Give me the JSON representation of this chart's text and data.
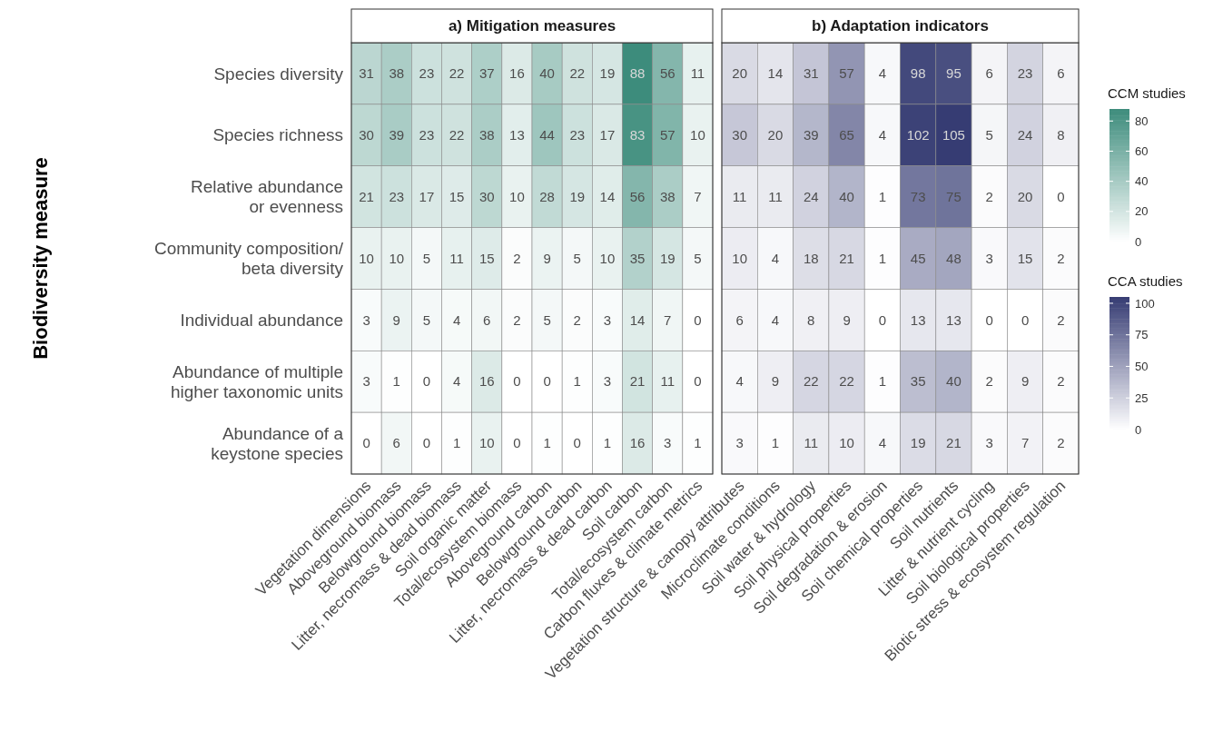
{
  "chart_data": [
    {
      "type": "heatmap",
      "title": "a)  Mitigation measures",
      "ylabel": "Biodiversity measure",
      "clabel": "CCM studies",
      "color": "#3d8c7c",
      "clim": [
        0,
        88
      ],
      "cticks": [
        0,
        20,
        40,
        60,
        80
      ],
      "categories": [
        "Vegetation dimensions",
        "Aboveground biomass",
        "Belowground biomass",
        "Litter, necromass & dead biomass",
        "Soil organic matter",
        "Total/ecosystem biomass",
        "Aboveground carbon",
        "Belowground carbon",
        "Litter, necromass & dead carbon",
        "Soil carbon",
        "Total/ecosystem carbon",
        "Carbon fluxes & climate metrics"
      ],
      "y_categories": [
        "Species diversity",
        "Species richness",
        "Relative abundance\nor evenness",
        "Community composition/\nbeta diversity",
        "Individual abundance",
        "Abundance of multiple\nhigher taxonomic units",
        "Abundance of a\nkeystone species"
      ],
      "cells": [
        [
          31,
          38,
          23,
          22,
          37,
          16,
          40,
          22,
          19,
          88,
          56,
          11
        ],
        [
          30,
          39,
          23,
          22,
          38,
          13,
          44,
          23,
          17,
          83,
          57,
          10
        ],
        [
          21,
          23,
          17,
          15,
          30,
          10,
          28,
          19,
          14,
          56,
          38,
          7
        ],
        [
          10,
          10,
          5,
          11,
          15,
          2,
          9,
          5,
          10,
          35,
          19,
          5
        ],
        [
          3,
          9,
          5,
          4,
          6,
          2,
          5,
          2,
          3,
          14,
          7,
          0
        ],
        [
          3,
          1,
          0,
          4,
          16,
          0,
          0,
          1,
          3,
          21,
          11,
          0
        ],
        [
          0,
          6,
          0,
          1,
          10,
          0,
          1,
          0,
          1,
          16,
          3,
          1
        ]
      ],
      "data_labels": true
    },
    {
      "type": "heatmap",
      "title": "b)  Adaptation indicators",
      "clabel": "CCA studies",
      "color": "#363c73",
      "clim": [
        0,
        105
      ],
      "cticks": [
        0,
        25,
        50,
        75,
        100
      ],
      "tick_labels": "x",
      "categories": [
        "Vegetation structure & canopy attributes",
        "Microclimate conditions",
        "Soil water & hydrology",
        "Soil physical properties",
        "Soil degradation & erosion",
        "Soil chemical properties",
        "Soil nutrients",
        "Litter & nutrient cycling",
        "Soil biological properties",
        "Biotic stress & ecosystem regulation"
      ],
      "y_categories": [
        null,
        null,
        null,
        null,
        null,
        null,
        null
      ],
      "cells": [
        [
          20,
          14,
          31,
          57,
          4,
          98,
          95,
          6,
          23,
          6
        ],
        [
          30,
          20,
          39,
          65,
          4,
          102,
          105,
          5,
          24,
          8
        ],
        [
          11,
          11,
          24,
          40,
          1,
          73,
          75,
          2,
          20,
          0
        ],
        [
          10,
          4,
          18,
          21,
          1,
          45,
          48,
          3,
          15,
          2
        ],
        [
          6,
          4,
          8,
          9,
          0,
          13,
          13,
          0,
          0,
          2
        ],
        [
          4,
          9,
          22,
          22,
          1,
          35,
          40,
          2,
          9,
          2
        ],
        [
          3,
          1,
          11,
          10,
          4,
          19,
          21,
          3,
          7,
          2
        ]
      ],
      "data_labels": true
    }
  ]
}
